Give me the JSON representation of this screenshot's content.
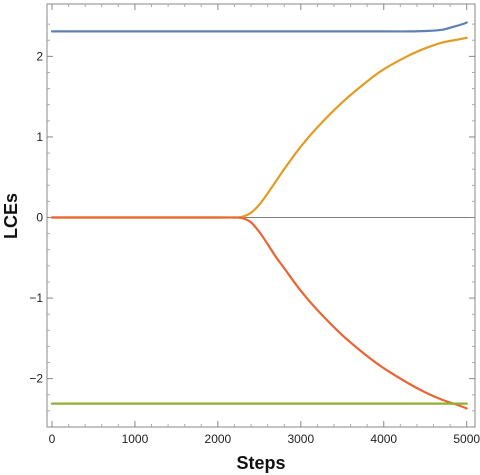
{
  "chart_data": {
    "type": "line",
    "title": "",
    "xlabel": "Steps",
    "ylabel": "LCEs",
    "xlim": [
      -60,
      5100
    ],
    "ylim": [
      -2.6,
      2.65
    ],
    "xticks": [
      0,
      1000,
      2000,
      3000,
      4000,
      5000
    ],
    "xtick_labels": [
      "0",
      "1000",
      "2000",
      "3000",
      "4000",
      "5000"
    ],
    "yticks": [
      -2,
      -1,
      0,
      1,
      2
    ],
    "ytick_labels": [
      "−2",
      "−1",
      "0",
      "1",
      "2"
    ],
    "grid": false,
    "zero_line": true,
    "frame": true,
    "series": [
      {
        "color": "#5e81b5",
        "x": [
          0,
          1000,
          2000,
          3000,
          4000,
          4300,
          4500,
          4700,
          4850,
          4950,
          5000
        ],
        "y": [
          2.31,
          2.31,
          2.31,
          2.31,
          2.31,
          2.31,
          2.315,
          2.33,
          2.37,
          2.4,
          2.42
        ]
      },
      {
        "color": "#e19c24",
        "x": [
          0,
          1000,
          2000,
          2200,
          2300,
          2400,
          2500,
          2600,
          2700,
          2800,
          3000,
          3200,
          3500,
          3800,
          4000,
          4300,
          4500,
          4700,
          4900,
          5000
        ],
        "y": [
          0,
          0,
          0,
          0.0,
          0.01,
          0.06,
          0.16,
          0.3,
          0.45,
          0.6,
          0.88,
          1.12,
          1.43,
          1.69,
          1.84,
          2.01,
          2.1,
          2.17,
          2.21,
          2.23
        ]
      },
      {
        "color": "#ea6434",
        "x": [
          0,
          1000,
          2000,
          2200,
          2300,
          2400,
          2500,
          2600,
          2700,
          2800,
          3000,
          3200,
          3500,
          3800,
          4000,
          4300,
          4500,
          4700,
          4900,
          5000
        ],
        "y": [
          0,
          0,
          0,
          0.0,
          -0.01,
          -0.06,
          -0.18,
          -0.33,
          -0.49,
          -0.63,
          -0.91,
          -1.15,
          -1.46,
          -1.72,
          -1.87,
          -2.06,
          -2.17,
          -2.26,
          -2.33,
          -2.37
        ]
      },
      {
        "color": "#8fb131",
        "x": [
          0,
          1000,
          2000,
          3000,
          4000,
          5000
        ],
        "y": [
          -2.31,
          -2.31,
          -2.31,
          -2.31,
          -2.31,
          -2.31
        ]
      }
    ]
  }
}
